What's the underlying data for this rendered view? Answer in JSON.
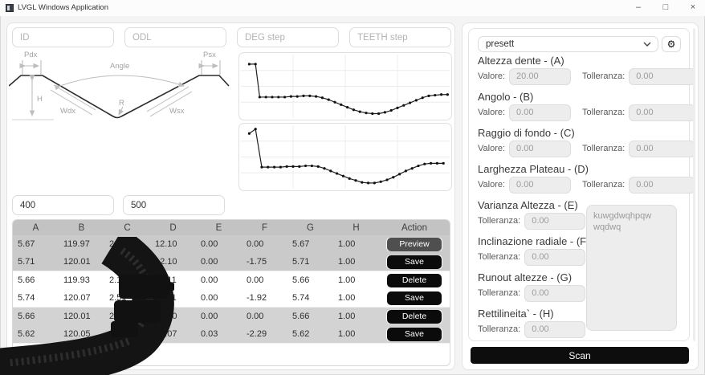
{
  "window": {
    "title": "LVGL Windows Application",
    "icons": {
      "minimize": "–",
      "maximize": "□",
      "close": "×",
      "chevron_down": "chevron-down",
      "gear": "⚙"
    }
  },
  "left": {
    "inputs": [
      {
        "placeholder": "ID"
      },
      {
        "placeholder": "ODL"
      },
      {
        "placeholder": "DEG step"
      },
      {
        "placeholder": "TEETH step"
      }
    ],
    "diagram": {
      "labels": {
        "pdx": "Pdx",
        "angle": "Angle",
        "psx": "Psx",
        "h": "H",
        "wdx": "Wdx",
        "r": "R",
        "wsx": "Wsx"
      }
    },
    "params": [
      {
        "value": "400"
      },
      {
        "value": "500"
      }
    ],
    "table": {
      "headers": [
        "A",
        "B",
        "C",
        "D",
        "E",
        "F",
        "G",
        "H",
        "Action"
      ],
      "groups": [
        {
          "shade": "a",
          "rows": [
            {
              "cells": [
                "5.67",
                "119.97",
                "2.00",
                "12.10",
                "0.00",
                "0.00",
                "5.67",
                "1.00"
              ],
              "action": "Preview"
            },
            {
              "cells": [
                "5.71",
                "120.01",
                "",
                "12.10",
                "0.00",
                "-1.75",
                "5.71",
                "1.00"
              ],
              "action": "Save"
            }
          ]
        },
        {
          "shade": "b",
          "rows": [
            {
              "cells": [
                "5.66",
                "119.93",
                "2.1",
                "12.11",
                "0.00",
                "0.00",
                "5.66",
                "1.00"
              ],
              "action": "Delete"
            },
            {
              "cells": [
                "5.74",
                "120.07",
                "2.51",
                "12.11",
                "0.00",
                "-1.92",
                "5.74",
                "1.00"
              ],
              "action": "Save"
            }
          ]
        },
        {
          "shade": "c",
          "rows": [
            {
              "cells": [
                "5.66",
                "120.01",
                "2.27",
                "12.10",
                "0.00",
                "0.00",
                "5.66",
                "1.00"
              ],
              "action": "Delete"
            },
            {
              "cells": [
                "5.62",
                "120.05",
                "2.",
                "12.07",
                "0.03",
                "-2.29",
                "5.62",
                "1.00"
              ],
              "action": "Save"
            }
          ]
        }
      ]
    }
  },
  "right": {
    "preset_dropdown": {
      "value": "presett"
    },
    "sections": [
      {
        "title": "Altezza dente - (A)",
        "fields": [
          {
            "label": "Valore:",
            "value": "20.00"
          },
          {
            "label": "Tolleranza:",
            "value": "0.00"
          }
        ]
      },
      {
        "title": "Angolo - (B)",
        "fields": [
          {
            "label": "Valore:",
            "value": "0.00"
          },
          {
            "label": "Tolleranza:",
            "value": "0.00"
          }
        ]
      },
      {
        "title": "Raggio di fondo - (C)",
        "fields": [
          {
            "label": "Valore:",
            "value": "0.00"
          },
          {
            "label": "Tolleranza:",
            "value": "0.00"
          }
        ]
      },
      {
        "title": "Larghezza Plateau - (D)",
        "fields": [
          {
            "label": "Valore:",
            "value": "0.00"
          },
          {
            "label": "Tolleranza:",
            "value": "0.00"
          }
        ]
      },
      {
        "title": "Varianza Altezza - (E)",
        "fields": [
          {
            "label": "Tolleranza:",
            "value": "0.00"
          }
        ]
      },
      {
        "title": "Inclinazione radiale - (F)",
        "fields": [
          {
            "label": "Tolleranza:",
            "value": "0.00"
          }
        ]
      },
      {
        "title": "Runout altezze - (G)",
        "fields": [
          {
            "label": "Tolleranza:",
            "value": "0.00"
          }
        ]
      },
      {
        "title": "Rettilineita` - (H)",
        "fields": [
          {
            "label": "Tolleranza:",
            "value": "0.00"
          }
        ]
      }
    ],
    "notes": "kuwgdwqhpqw wqdwq",
    "scan_button": "Scan"
  },
  "chart_data": [
    {
      "type": "line",
      "title": "",
      "xlabel": "",
      "ylabel": "",
      "legend": "none",
      "grid": true,
      "axis_note": "axes unlabeled; values normalized 0-100 (x = position %, y = height %)",
      "points": [
        [
          4,
          85
        ],
        [
          7,
          85
        ],
        [
          9,
          33
        ],
        [
          12,
          33
        ],
        [
          15,
          33
        ],
        [
          18,
          33
        ],
        [
          21,
          33
        ],
        [
          24,
          34
        ],
        [
          27,
          34
        ],
        [
          30,
          35
        ],
        [
          33,
          35
        ],
        [
          36,
          34
        ],
        [
          39,
          32
        ],
        [
          42,
          29
        ],
        [
          45,
          25
        ],
        [
          48,
          21
        ],
        [
          51,
          17
        ],
        [
          54,
          13
        ],
        [
          57,
          10
        ],
        [
          60,
          8
        ],
        [
          63,
          7
        ],
        [
          66,
          7
        ],
        [
          69,
          9
        ],
        [
          72,
          12
        ],
        [
          75,
          16
        ],
        [
          78,
          20
        ],
        [
          81,
          24
        ],
        [
          84,
          28
        ],
        [
          87,
          32
        ],
        [
          90,
          35
        ],
        [
          93,
          36
        ],
        [
          96,
          37
        ],
        [
          99,
          37
        ]
      ]
    },
    {
      "type": "line",
      "title": "",
      "xlabel": "",
      "ylabel": "",
      "legend": "none",
      "grid": true,
      "axis_note": "axes unlabeled; values normalized 0-100 (x = position %, y = height %)",
      "points": [
        [
          4,
          87
        ],
        [
          7,
          94
        ],
        [
          10,
          34
        ],
        [
          13,
          34
        ],
        [
          16,
          34
        ],
        [
          19,
          34
        ],
        [
          22,
          35
        ],
        [
          25,
          35
        ],
        [
          28,
          35
        ],
        [
          31,
          36
        ],
        [
          34,
          36
        ],
        [
          37,
          35
        ],
        [
          40,
          32
        ],
        [
          43,
          28
        ],
        [
          46,
          24
        ],
        [
          49,
          20
        ],
        [
          52,
          16
        ],
        [
          55,
          13
        ],
        [
          58,
          10
        ],
        [
          61,
          9
        ],
        [
          64,
          9
        ],
        [
          67,
          11
        ],
        [
          70,
          14
        ],
        [
          73,
          18
        ],
        [
          76,
          23
        ],
        [
          79,
          28
        ],
        [
          82,
          32
        ],
        [
          85,
          36
        ],
        [
          88,
          39
        ],
        [
          91,
          40
        ],
        [
          94,
          40
        ],
        [
          97,
          40
        ]
      ]
    }
  ]
}
